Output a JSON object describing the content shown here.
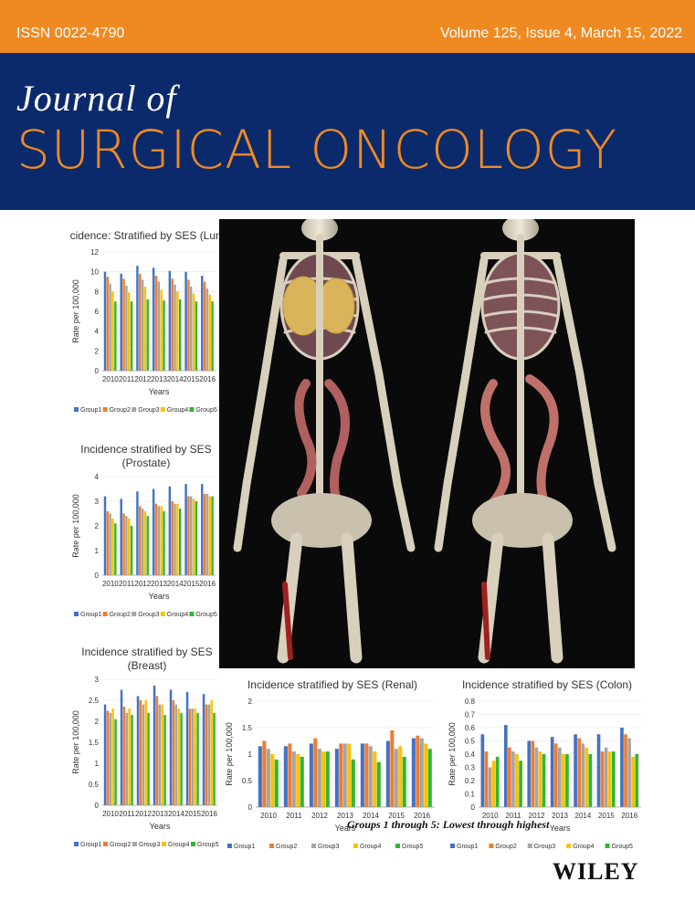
{
  "header": {
    "issn": "ISSN 0022-4790",
    "volume": "Volume 125, Issue 4, March 15, 2022"
  },
  "masthead": {
    "line1": "Journal of",
    "line2": "SURGICAL ONCOLOGY"
  },
  "colors": {
    "orange": "#ef8a23",
    "navy": "#0b2a6c",
    "group1": "#4472c4",
    "group2": "#ed7d31",
    "group3": "#a5a5a5",
    "group4": "#ffc000",
    "group5": "#2eb82e"
  },
  "years": [
    "2010",
    "2011",
    "2012",
    "2013",
    "2014",
    "2015",
    "2016"
  ],
  "legend": [
    "Group1",
    "Group2",
    "Group3",
    "Group4",
    "Group5"
  ],
  "chart_data": [
    {
      "id": "lung",
      "type": "bar",
      "title": "Incidence: Stratified by SES (Lung)",
      "title2": "",
      "xlabel": "Years",
      "ylabel": "Rate per 100,000",
      "ylim": [
        0,
        12
      ],
      "yticks": [
        0,
        2,
        4,
        6,
        8,
        10,
        12
      ],
      "categories": [
        "2010",
        "2011",
        "2012",
        "2013",
        "2014",
        "2015",
        "2016"
      ],
      "series": [
        {
          "name": "Group1",
          "values": [
            10.0,
            9.8,
            10.6,
            10.4,
            10.1,
            10.0,
            9.6
          ]
        },
        {
          "name": "Group2",
          "values": [
            9.5,
            9.3,
            9.8,
            9.6,
            9.3,
            9.2,
            9.0
          ]
        },
        {
          "name": "Group3",
          "values": [
            8.8,
            8.6,
            9.2,
            9.0,
            8.7,
            8.5,
            8.3
          ]
        },
        {
          "name": "Group4",
          "values": [
            8.0,
            7.9,
            8.5,
            8.2,
            8.0,
            7.8,
            7.7
          ]
        },
        {
          "name": "Group5",
          "values": [
            7.0,
            7.0,
            7.2,
            7.1,
            7.2,
            7.0,
            7.0
          ]
        }
      ]
    },
    {
      "id": "prostate",
      "type": "bar",
      "title": "Incidence stratified by SES",
      "title2": "(Prostate)",
      "xlabel": "Years",
      "ylabel": "Rate per 100,000",
      "ylim": [
        0,
        4
      ],
      "yticks": [
        0,
        1,
        2,
        3,
        4
      ],
      "categories": [
        "2010",
        "2011",
        "2012",
        "2013",
        "2014",
        "2015",
        "2016"
      ],
      "series": [
        {
          "name": "Group1",
          "values": [
            3.2,
            3.1,
            3.4,
            3.5,
            3.6,
            3.7,
            3.7
          ]
        },
        {
          "name": "Group2",
          "values": [
            2.6,
            2.5,
            2.8,
            2.9,
            3.0,
            3.2,
            3.3
          ]
        },
        {
          "name": "Group3",
          "values": [
            2.5,
            2.4,
            2.7,
            2.8,
            2.9,
            3.2,
            3.3
          ]
        },
        {
          "name": "Group4",
          "values": [
            2.3,
            2.3,
            2.6,
            2.8,
            2.9,
            3.1,
            3.2
          ]
        },
        {
          "name": "Group5",
          "values": [
            2.1,
            2.0,
            2.4,
            2.6,
            2.7,
            3.0,
            3.2
          ]
        }
      ]
    },
    {
      "id": "breast",
      "type": "bar",
      "title": "Incidence stratified by SES",
      "title2": "(Breast)",
      "xlabel": "Years",
      "ylabel": "Rate per 100,000",
      "ylim": [
        0,
        3
      ],
      "yticks": [
        0,
        0.5,
        1,
        1.5,
        2,
        2.5,
        3
      ],
      "categories": [
        "2010",
        "2011",
        "2012",
        "2013",
        "2014",
        "2015",
        "2016"
      ],
      "series": [
        {
          "name": "Group1",
          "values": [
            2.4,
            2.75,
            2.6,
            2.85,
            2.75,
            2.7,
            2.65
          ]
        },
        {
          "name": "Group2",
          "values": [
            2.25,
            2.35,
            2.5,
            2.6,
            2.5,
            2.3,
            2.4
          ]
        },
        {
          "name": "Group3",
          "values": [
            2.2,
            2.2,
            2.4,
            2.4,
            2.4,
            2.3,
            2.4
          ]
        },
        {
          "name": "Group4",
          "values": [
            2.3,
            2.3,
            2.5,
            2.4,
            2.3,
            2.3,
            2.5
          ]
        },
        {
          "name": "Group5",
          "values": [
            2.05,
            2.15,
            2.2,
            2.15,
            2.2,
            2.2,
            2.2
          ]
        }
      ]
    },
    {
      "id": "renal",
      "type": "bar",
      "title": "Incidence stratified by SES (Renal)",
      "title2": "",
      "xlabel": "Years",
      "ylabel": "Rate per 100,000",
      "ylim": [
        0,
        2
      ],
      "yticks": [
        0,
        0.5,
        1,
        1.5,
        2
      ],
      "categories": [
        "2010",
        "2011",
        "2012",
        "2013",
        "2014",
        "2015",
        "2016"
      ],
      "series": [
        {
          "name": "Group1",
          "values": [
            1.15,
            1.15,
            1.2,
            1.1,
            1.2,
            1.25,
            1.3
          ]
        },
        {
          "name": "Group2",
          "values": [
            1.25,
            1.2,
            1.3,
            1.2,
            1.2,
            1.45,
            1.35
          ]
        },
        {
          "name": "Group3",
          "values": [
            1.1,
            1.05,
            1.1,
            1.2,
            1.15,
            1.1,
            1.3
          ]
        },
        {
          "name": "Group4",
          "values": [
            1.0,
            1.0,
            1.05,
            1.2,
            1.05,
            1.15,
            1.2
          ]
        },
        {
          "name": "Group5",
          "values": [
            0.9,
            0.95,
            1.05,
            0.9,
            0.85,
            0.95,
            1.1
          ]
        }
      ]
    },
    {
      "id": "colon",
      "type": "bar",
      "title": "Incidence stratified by SES (Colon)",
      "title2": "",
      "xlabel": "Years",
      "ylabel": "Rate per 100,000",
      "ylim": [
        0,
        0.8
      ],
      "yticks": [
        0,
        0.1,
        0.2,
        0.3,
        0.4,
        0.5,
        0.6,
        0.7,
        0.8
      ],
      "categories": [
        "2010",
        "2011",
        "2012",
        "2013",
        "2014",
        "2015",
        "2016"
      ],
      "series": [
        {
          "name": "Group1",
          "values": [
            0.55,
            0.62,
            0.5,
            0.53,
            0.55,
            0.55,
            0.6
          ]
        },
        {
          "name": "Group2",
          "values": [
            0.42,
            0.45,
            0.5,
            0.48,
            0.52,
            0.42,
            0.55
          ]
        },
        {
          "name": "Group3",
          "values": [
            0.3,
            0.42,
            0.45,
            0.45,
            0.48,
            0.45,
            0.52
          ]
        },
        {
          "name": "Group4",
          "values": [
            0.35,
            0.4,
            0.42,
            0.4,
            0.45,
            0.42,
            0.38
          ]
        },
        {
          "name": "Group5",
          "values": [
            0.38,
            0.35,
            0.4,
            0.4,
            0.4,
            0.42,
            0.4
          ]
        }
      ]
    }
  ],
  "caption": "Groups 1 through 5: Lowest through highest",
  "publisher": "WILEY"
}
